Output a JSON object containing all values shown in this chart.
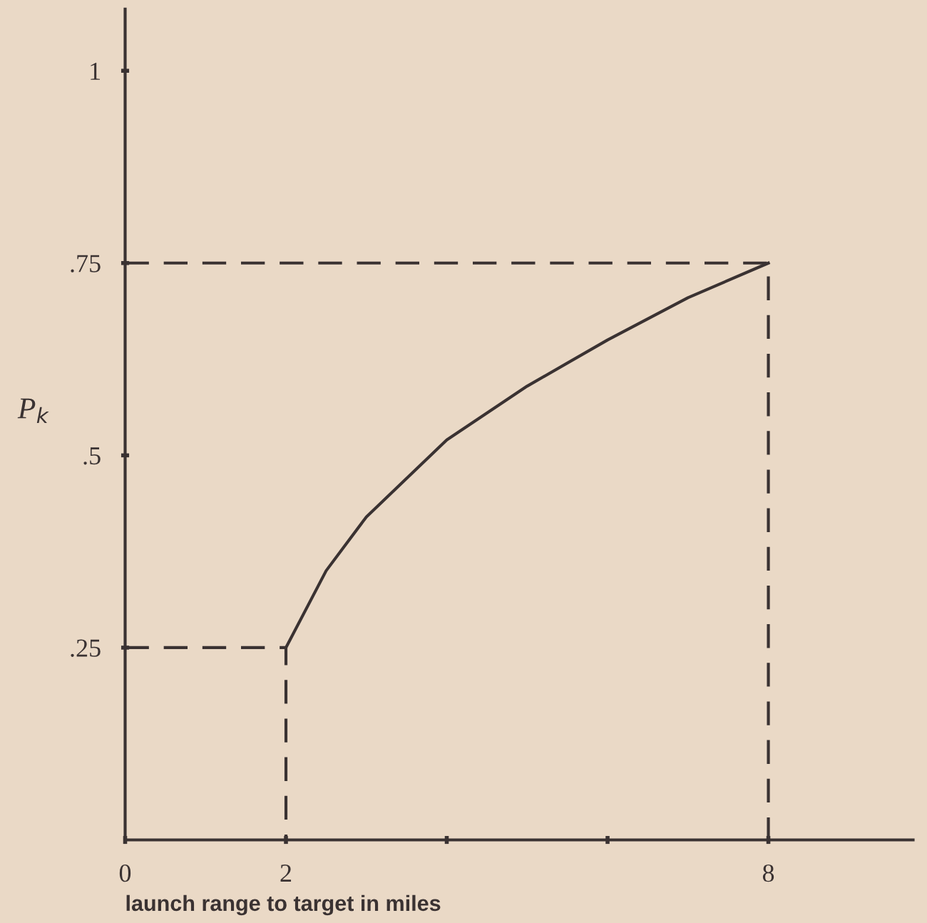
{
  "chart_data": {
    "type": "line",
    "xlabel": "launch range to target in miles",
    "ylabel": "P$_{k}$",
    "xlim": [
      0,
      9.8
    ],
    "ylim": [
      0,
      1.08
    ],
    "xticks": [
      {
        "value": 0,
        "label": "0"
      },
      {
        "value": 2,
        "label": "2"
      },
      {
        "value": 4,
        "label": null
      },
      {
        "value": 6,
        "label": null
      },
      {
        "value": 8,
        "label": "8"
      }
    ],
    "yticks": [
      {
        "value": 0.25,
        "label": ".25"
      },
      {
        "value": 0.5,
        "label": ".5"
      },
      {
        "value": 0.75,
        "label": ".75"
      },
      {
        "value": 1,
        "label": "1"
      }
    ],
    "grid": false,
    "legend": false,
    "marker": "none",
    "series": [
      {
        "color": "#3a3232",
        "line_style": "solid",
        "x": [
          2,
          2.5,
          3,
          4,
          5,
          6,
          7,
          8
        ],
        "values": [
          0.25,
          0.35,
          0.42,
          0.52,
          0.59,
          0.65,
          0.705,
          0.75
        ]
      },
      {
        "color": "#3a3232",
        "line_style": "dashed",
        "x": [
          0,
          2,
          2
        ],
        "values": [
          0.25,
          0.25,
          0
        ]
      },
      {
        "color": "#3a3232",
        "line_style": "dashed",
        "x": [
          0,
          8,
          8
        ],
        "values": [
          0.75,
          0.75,
          0
        ]
      }
    ]
  }
}
